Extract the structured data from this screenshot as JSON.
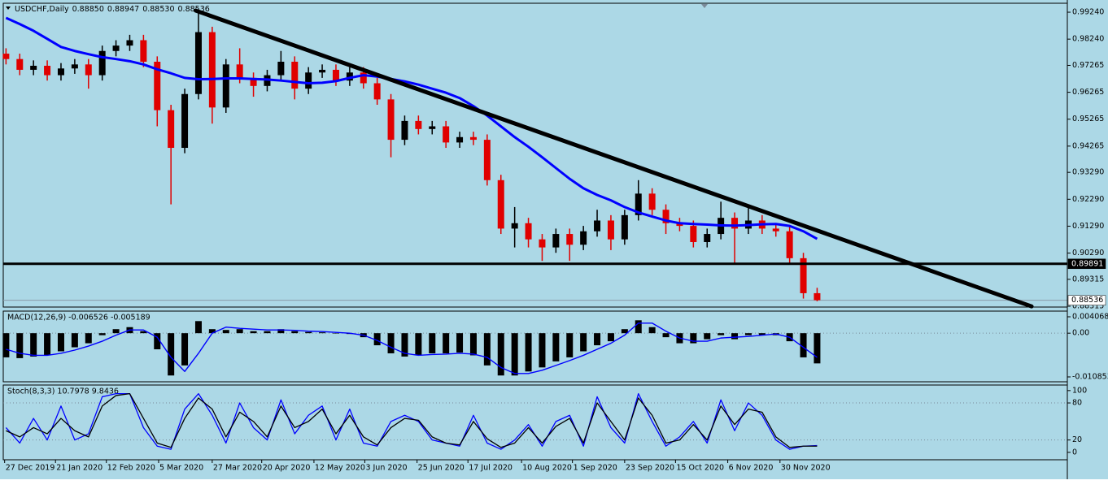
{
  "chart_data": [
    {
      "type": "candlestick",
      "title": "USDCHF,Daily",
      "title_values": [
        "0.88850",
        "0.88947",
        "0.88530",
        "0.88536"
      ],
      "xlim": [
        -0.2,
        77.2
      ],
      "ylim": [
        0.88285,
        0.99573
      ],
      "yticks": [
        {
          "value": 0.9924,
          "label": "0.99240"
        },
        {
          "value": 0.9824,
          "label": "0.98240"
        },
        {
          "value": 0.97265,
          "label": "0.97265"
        },
        {
          "value": 0.96265,
          "label": "0.96265"
        },
        {
          "value": 0.95265,
          "label": "0.95265"
        },
        {
          "value": 0.94265,
          "label": "0.94265"
        },
        {
          "value": 0.9329,
          "label": "0.93290"
        },
        {
          "value": 0.9229,
          "label": "0.92290"
        },
        {
          "value": 0.9129,
          "label": "0.91290"
        },
        {
          "value": 0.9029,
          "label": "0.90290"
        },
        {
          "value": 0.89315,
          "label": "0.89315"
        },
        {
          "value": 0.88315,
          "label": "0.88315"
        }
      ],
      "up_color": "#000000",
      "down_color": "#e00000",
      "open": [
        0.977,
        0.975,
        0.971,
        0.9725,
        0.969,
        0.9715,
        0.973,
        0.969,
        0.978,
        0.98,
        0.982,
        0.974,
        0.956,
        0.942,
        0.962,
        0.985,
        0.957,
        0.973,
        0.968,
        0.965,
        0.969,
        0.974,
        0.964,
        0.97,
        0.971,
        0.967,
        0.97,
        0.966,
        0.96,
        0.945,
        0.952,
        0.949,
        0.95,
        0.944,
        0.946,
        0.945,
        0.93,
        0.912,
        0.914,
        0.908,
        0.905,
        0.91,
        0.906,
        0.911,
        0.915,
        0.908,
        0.917,
        0.925,
        0.919,
        0.914,
        0.913,
        0.907,
        0.91,
        0.916,
        0.912,
        0.915,
        0.912,
        0.911,
        0.901,
        0.888
      ],
      "high": [
        0.979,
        0.977,
        0.9745,
        0.9745,
        0.9735,
        0.975,
        0.975,
        0.98,
        0.982,
        0.984,
        0.984,
        0.976,
        0.958,
        0.964,
        0.993,
        0.987,
        0.975,
        0.979,
        0.97,
        0.971,
        0.978,
        0.976,
        0.972,
        0.973,
        0.973,
        0.972,
        0.972,
        0.968,
        0.962,
        0.954,
        0.954,
        0.952,
        0.952,
        0.948,
        0.948,
        0.947,
        0.932,
        0.92,
        0.916,
        0.91,
        0.912,
        0.912,
        0.913,
        0.919,
        0.917,
        0.919,
        0.93,
        0.927,
        0.921,
        0.916,
        0.915,
        0.912,
        0.922,
        0.918,
        0.921,
        0.917,
        0.914,
        0.913,
        0.903,
        0.89
      ],
      "low": [
        0.973,
        0.969,
        0.969,
        0.967,
        0.967,
        0.9695,
        0.964,
        0.967,
        0.976,
        0.978,
        0.972,
        0.95,
        0.921,
        0.94,
        0.96,
        0.951,
        0.955,
        0.966,
        0.961,
        0.963,
        0.967,
        0.96,
        0.962,
        0.968,
        0.965,
        0.965,
        0.964,
        0.958,
        0.9385,
        0.943,
        0.947,
        0.947,
        0.942,
        0.942,
        0.943,
        0.928,
        0.91,
        0.905,
        0.905,
        0.9,
        0.903,
        0.9,
        0.904,
        0.909,
        0.904,
        0.906,
        0.915,
        0.917,
        0.91,
        0.911,
        0.905,
        0.905,
        0.908,
        0.899,
        0.91,
        0.91,
        0.909,
        0.899,
        0.886,
        0.885
      ],
      "close": [
        0.975,
        0.971,
        0.9725,
        0.969,
        0.9715,
        0.973,
        0.969,
        0.978,
        0.98,
        0.982,
        0.974,
        0.956,
        0.942,
        0.962,
        0.985,
        0.957,
        0.973,
        0.968,
        0.965,
        0.969,
        0.974,
        0.964,
        0.97,
        0.971,
        0.967,
        0.97,
        0.966,
        0.96,
        0.945,
        0.952,
        0.949,
        0.95,
        0.944,
        0.946,
        0.945,
        0.93,
        0.912,
        0.914,
        0.908,
        0.905,
        0.91,
        0.906,
        0.911,
        0.915,
        0.908,
        0.917,
        0.925,
        0.919,
        0.914,
        0.913,
        0.907,
        0.91,
        0.916,
        0.912,
        0.915,
        0.912,
        0.911,
        0.901,
        0.888,
        0.8854
      ],
      "series": [
        {
          "color": "#0000ff",
          "values": [
            0.9903,
            0.988,
            0.9855,
            0.9825,
            0.9795,
            0.978,
            0.9768,
            0.9757,
            0.975,
            0.9742,
            0.973,
            0.9712,
            0.9697,
            0.968,
            0.9675,
            0.9676,
            0.9678,
            0.9678,
            0.9676,
            0.9674,
            0.967,
            0.9665,
            0.966,
            0.9662,
            0.9668,
            0.968,
            0.969,
            0.9685,
            0.9676,
            0.9667,
            0.9655,
            0.964,
            0.9625,
            0.9605,
            0.9575,
            0.954,
            0.95,
            0.946,
            0.9424,
            0.9385,
            0.9345,
            0.9305,
            0.927,
            0.9245,
            0.9225,
            0.92,
            0.918,
            0.9165,
            0.915,
            0.914,
            0.9137,
            0.9135,
            0.9132,
            0.9131,
            0.9133,
            0.9136,
            0.9137,
            0.913,
            0.911,
            0.9082
          ]
        }
      ],
      "trendline": {
        "color": "#000000",
        "x": [
          13.8,
          74.6
        ],
        "y": [
          0.993,
          0.8831
        ]
      },
      "level": {
        "value": 0.89891,
        "label": "0.89891"
      },
      "last": {
        "value": 0.88536,
        "label": "0.88536"
      }
    },
    {
      "type": "macd",
      "title": "MACD(12,26,9) -0.006526 -0.005189",
      "xlim": [
        -0.2,
        77.2
      ],
      "ylim": [
        -0.012063,
        0.005479
      ],
      "yticks": [
        {
          "value": 0.004068,
          "label": "0.004068"
        },
        {
          "value": 0,
          "label": "0.00"
        },
        {
          "value": -0.010853,
          "label": "-0.010853"
        }
      ],
      "levels": [
        0
      ],
      "histogram_color": "#000000",
      "histogram": [
        -0.006,
        -0.0062,
        -0.0058,
        -0.0055,
        -0.0045,
        -0.0035,
        -0.0025,
        -0.0005,
        0.001,
        0.0015,
        0.0005,
        -0.004,
        -0.0105,
        -0.008,
        0.003,
        0.001,
        0.0008,
        0.001,
        0.0005,
        0.0005,
        0.001,
        0.0005,
        0.0003,
        0.0002,
        0,
        -0.0002,
        -0.001,
        -0.003,
        -0.005,
        -0.0058,
        -0.0055,
        -0.005,
        -0.005,
        -0.0048,
        -0.0055,
        -0.008,
        -0.0105,
        -0.0105,
        -0.0095,
        -0.0085,
        -0.007,
        -0.006,
        -0.0045,
        -0.003,
        -0.002,
        0.001,
        0.0032,
        0.0015,
        -0.001,
        -0.0025,
        -0.0025,
        -0.0015,
        -0.0005,
        -0.0015,
        -0.0005,
        -0.0005,
        -0.0005,
        -0.002,
        -0.006,
        -0.0075
      ],
      "series": [
        {
          "color": "#0000ff",
          "values": [
            -0.004,
            -0.005,
            -0.0055,
            -0.0055,
            -0.005,
            -0.0042,
            -0.0032,
            -0.002,
            -0.0005,
            0.0008,
            0.0008,
            -0.001,
            -0.006,
            -0.0095,
            -0.005,
            0,
            0.0015,
            0.0012,
            0.001,
            0.0008,
            0.0008,
            0.0007,
            0.0005,
            0.0004,
            0.0002,
            0,
            -0.0005,
            -0.0018,
            -0.0035,
            -0.005,
            -0.0055,
            -0.0053,
            -0.0052,
            -0.005,
            -0.0052,
            -0.006,
            -0.0085,
            -0.01,
            -0.01,
            -0.0092,
            -0.008,
            -0.0068,
            -0.0055,
            -0.004,
            -0.0025,
            -0.0005,
            0.0025,
            0.0025,
            0.0005,
            -0.0012,
            -0.002,
            -0.002,
            -0.0012,
            -0.001,
            -0.0008,
            -0.0005,
            -0.0002,
            -0.001,
            -0.0035,
            -0.006
          ]
        }
      ]
    },
    {
      "type": "stochastic",
      "title": "Stoch(8,3,3) 10.7978 9.8436",
      "xlim": [
        -0.2,
        77.2
      ],
      "ylim": [
        -12,
        109
      ],
      "yticks": [
        100,
        80,
        20,
        0
      ],
      "levels": [
        80,
        20
      ],
      "xticks": [
        {
          "value": -0.1,
          "label": "27 Dec 2019"
        },
        {
          "value": 3.6,
          "label": "21 Jan 2020"
        },
        {
          "value": 7.3,
          "label": "12 Feb 2020"
        },
        {
          "value": 11.1,
          "label": "5 Mar 2020"
        },
        {
          "value": 15,
          "label": "27 Mar 2020"
        },
        {
          "value": 18.6,
          "label": "20 Apr 2020"
        },
        {
          "value": 22.4,
          "label": "12 May 2020"
        },
        {
          "value": 26.1,
          "label": "3 Jun 2020"
        },
        {
          "value": 29.9,
          "label": "25 Jun 2020"
        },
        {
          "value": 33.6,
          "label": "17 Jul 2020"
        },
        {
          "value": 37.5,
          "label": "10 Aug 2020"
        },
        {
          "value": 41.2,
          "label": "1 Sep 2020"
        },
        {
          "value": 45,
          "label": "23 Sep 2020"
        },
        {
          "value": 48.7,
          "label": "15 Oct 2020"
        },
        {
          "value": 52.5,
          "label": "6 Nov 2020"
        },
        {
          "value": 56.3,
          "label": "30 Nov 2020"
        }
      ],
      "series": [
        {
          "color": "#0000ff",
          "values": [
            40,
            15,
            55,
            20,
            75,
            20,
            30,
            90,
            95,
            95,
            40,
            10,
            5,
            70,
            95,
            60,
            15,
            80,
            40,
            20,
            85,
            30,
            60,
            75,
            20,
            70,
            15,
            10,
            50,
            60,
            50,
            20,
            15,
            10,
            60,
            15,
            5,
            20,
            45,
            10,
            50,
            60,
            10,
            90,
            40,
            15,
            95,
            50,
            10,
            25,
            50,
            15,
            85,
            35,
            80,
            60,
            20,
            5,
            10,
            11
          ]
        },
        {
          "color": "#000000",
          "values": [
            35,
            25,
            40,
            30,
            55,
            35,
            25,
            75,
            92,
            95,
            55,
            15,
            8,
            55,
            88,
            70,
            25,
            65,
            50,
            25,
            75,
            40,
            50,
            70,
            30,
            60,
            25,
            12,
            40,
            55,
            52,
            25,
            15,
            12,
            50,
            22,
            8,
            15,
            40,
            15,
            42,
            55,
            15,
            80,
            50,
            20,
            88,
            60,
            15,
            20,
            45,
            20,
            75,
            45,
            70,
            65,
            25,
            8,
            10,
            10
          ]
        }
      ]
    }
  ]
}
